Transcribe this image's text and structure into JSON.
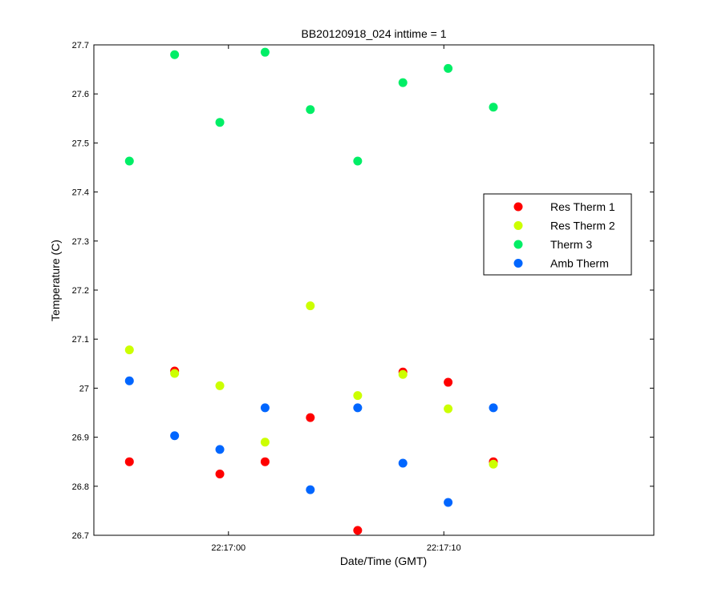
{
  "chart_data": {
    "type": "scatter",
    "title": "BB20120918_024 inttime = 1",
    "xlabel": "Date/Time (GMT)",
    "ylabel": "Temperature (C)",
    "ylim": [
      26.7,
      27.7
    ],
    "yticks": [
      "26.7",
      "26.8",
      "26.9",
      "27",
      "27.1",
      "27.2",
      "27.3",
      "27.4",
      "27.5",
      "27.6",
      "27.7"
    ],
    "xlim_seconds": [
      53.75,
      79.75
    ],
    "xticks": [
      {
        "seconds": 60,
        "label": "22:17:00"
      },
      {
        "seconds": 70,
        "label": "22:17:10"
      }
    ],
    "x_seconds": [
      55.4,
      57.5,
      59.6,
      61.7,
      63.8,
      66.0,
      68.1,
      70.2,
      72.3
    ],
    "grid": false,
    "legend_position": "center-right",
    "series": [
      {
        "name": "Res Therm 1",
        "color": "#ff0000",
        "values": [
          26.85,
          27.035,
          26.825,
          26.85,
          26.94,
          26.71,
          27.033,
          27.012,
          26.85
        ]
      },
      {
        "name": "Res Therm 2",
        "color": "#ccff00",
        "values": [
          27.078,
          27.03,
          27.005,
          26.89,
          27.168,
          26.985,
          27.028,
          26.958,
          26.845
        ]
      },
      {
        "name": "Therm 3",
        "color": "#00ee66",
        "values": [
          27.463,
          27.68,
          27.542,
          27.685,
          27.568,
          27.463,
          27.623,
          27.652,
          27.573
        ]
      },
      {
        "name": "Amb Therm",
        "color": "#0066ff",
        "values": [
          27.015,
          26.903,
          26.875,
          26.96,
          26.793,
          26.96,
          26.847,
          26.767,
          26.96
        ]
      }
    ]
  }
}
